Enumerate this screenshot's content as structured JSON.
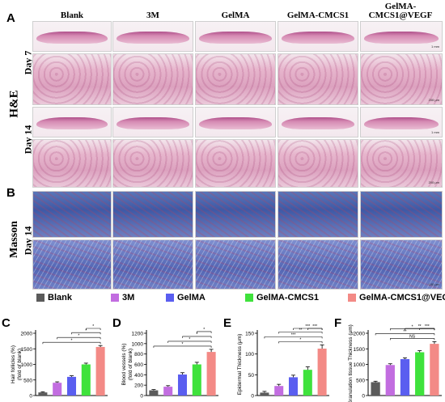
{
  "panels": {
    "A": "A",
    "B": "B",
    "C": "C",
    "D": "D",
    "E": "E",
    "F": "F"
  },
  "columns": [
    {
      "id": "blank",
      "line1": "",
      "line2": "Blank"
    },
    {
      "id": "3m",
      "line1": "",
      "line2": "3M"
    },
    {
      "id": "gelma",
      "line1": "",
      "line2": "GelMA"
    },
    {
      "id": "gelma-cmcs1",
      "line1": "",
      "line2": "GelMA-CMCS1"
    },
    {
      "id": "gelma-cmcs1-vegf",
      "line1": "GelMA-",
      "line2": "CMCS1@VEGF"
    }
  ],
  "row_labels": {
    "stain_he": "H&E",
    "stain_masson": "Masson",
    "day7": "Day 7",
    "day14": "Day 14",
    "day14_masson": "Day 14"
  },
  "scale_bars": {
    "overview": "1 mm",
    "zoom": "200 μm",
    "masson_zoom": "100 μm"
  },
  "legend": [
    {
      "name": "Blank",
      "color": "#5b5b5b"
    },
    {
      "name": "3M",
      "color": "#c26de0"
    },
    {
      "name": "GelMA",
      "color": "#5a5ef0"
    },
    {
      "name": "GelMA-CMCS1",
      "color": "#3fe23c"
    },
    {
      "name": "GelMA-CMCS1@VEGF",
      "color": "#f38a86"
    }
  ],
  "chart_data": [
    {
      "panel": "C",
      "type": "bar",
      "categories": [
        "Blank",
        "3M",
        "GelMA",
        "GelMA-CMCS1",
        "GelMA-CMCS1@VEGF"
      ],
      "values": [
        100,
        410,
        600,
        1000,
        1560
      ],
      "errors": [
        20,
        30,
        35,
        40,
        45
      ],
      "ylabel": "Hair follicles (%)",
      "ylabel2": "(fold of blank)",
      "ylim": [
        0,
        2000
      ],
      "yticks": [
        0,
        500,
        1000,
        1500,
        2000
      ],
      "significance": [
        "*",
        "*",
        "*",
        "*"
      ]
    },
    {
      "panel": "D",
      "type": "bar",
      "categories": [
        "Blank",
        "3M",
        "GelMA",
        "GelMA-CMCS1",
        "GelMA-CMCS1@VEGF"
      ],
      "values": [
        100,
        170,
        405,
        600,
        840
      ],
      "errors": [
        15,
        20,
        35,
        40,
        50
      ],
      "ylabel": "Blood vessels (%)",
      "ylabel2": "(fold of blank)",
      "ylim": [
        0,
        1200
      ],
      "yticks": [
        0,
        200,
        400,
        600,
        800,
        1000,
        1200
      ],
      "significance": [
        "*",
        "*",
        "*",
        "*"
      ]
    },
    {
      "panel": "E",
      "type": "bar",
      "categories": [
        "Blank",
        "3M",
        "GelMA",
        "GelMA-CMCS1",
        "GelMA-CMCS1@VEGF"
      ],
      "values": [
        7,
        23,
        44,
        62,
        113
      ],
      "errors": [
        3,
        4,
        5,
        7,
        9
      ],
      "ylabel": "Epidermal Thickness (μm)",
      "ylabel2": "",
      "ylim": [
        0,
        150
      ],
      "yticks": [
        0,
        50,
        100,
        150
      ],
      "significance": [
        "*",
        "***",
        "**",
        "***",
        "***"
      ]
    },
    {
      "panel": "F",
      "type": "bar",
      "categories": [
        "Blank",
        "3M",
        "GelMA",
        "GelMA-CMCS1",
        "GelMA-CMCS1@VEGF"
      ],
      "values": [
        430,
        980,
        1170,
        1390,
        1660
      ],
      "errors": [
        30,
        40,
        40,
        50,
        70
      ],
      "ylabel": "Granulation tissue Thickness (μm)",
      "ylabel2": "",
      "ylim": [
        0,
        2000
      ],
      "yticks": [
        0,
        500,
        1000,
        1500,
        2000
      ],
      "significance": [
        "NS",
        "**",
        "*",
        "**",
        "***"
      ]
    }
  ]
}
